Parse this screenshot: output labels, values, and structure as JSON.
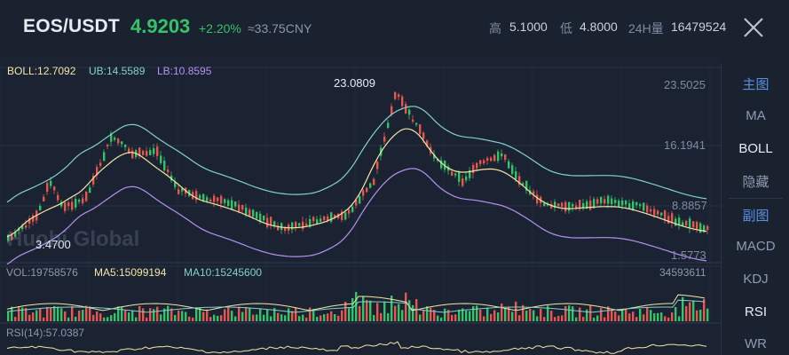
{
  "header": {
    "pair": "EOS/USDT",
    "price": "4.9203",
    "change": "+2.20%",
    "cny": "≈33.75CNY",
    "high_label": "高",
    "high_value": "5.1000",
    "low_label": "低",
    "low_value": "4.8000",
    "vol_label": "24H量",
    "vol_value": "16479524"
  },
  "boll_legend": {
    "boll": "BOLL:12.7092",
    "ub": "UB:14.5589",
    "lb": "LB:10.8595"
  },
  "price_axis": [
    "23.5025",
    "16.1941",
    "8.8857",
    "1.5773"
  ],
  "markers": {
    "high": "23.0809",
    "low": "3.4700"
  },
  "watermark": "Huobi Global",
  "volume_legend": {
    "vol": "VOL:19758576",
    "ma5": "MA5:15099194",
    "ma10": "MA10:15245600",
    "max": "34593611"
  },
  "rsi_legend": {
    "rsi": "RSI(14):57.0387"
  },
  "sidebar": {
    "main_title": "主图",
    "main_items": [
      "MA",
      "BOLL",
      "隐藏"
    ],
    "sub_title": "副图",
    "sub_items": [
      "MACD",
      "KDJ",
      "RSI",
      "WR"
    ]
  },
  "colors": {
    "up": "#35c36a",
    "down": "#e5584f",
    "boll": "#f3e6a6",
    "ub": "#7fd3c8",
    "lb": "#b392f0",
    "accent": "#5b8fe0"
  },
  "icons": {
    "close": "close-icon"
  }
}
